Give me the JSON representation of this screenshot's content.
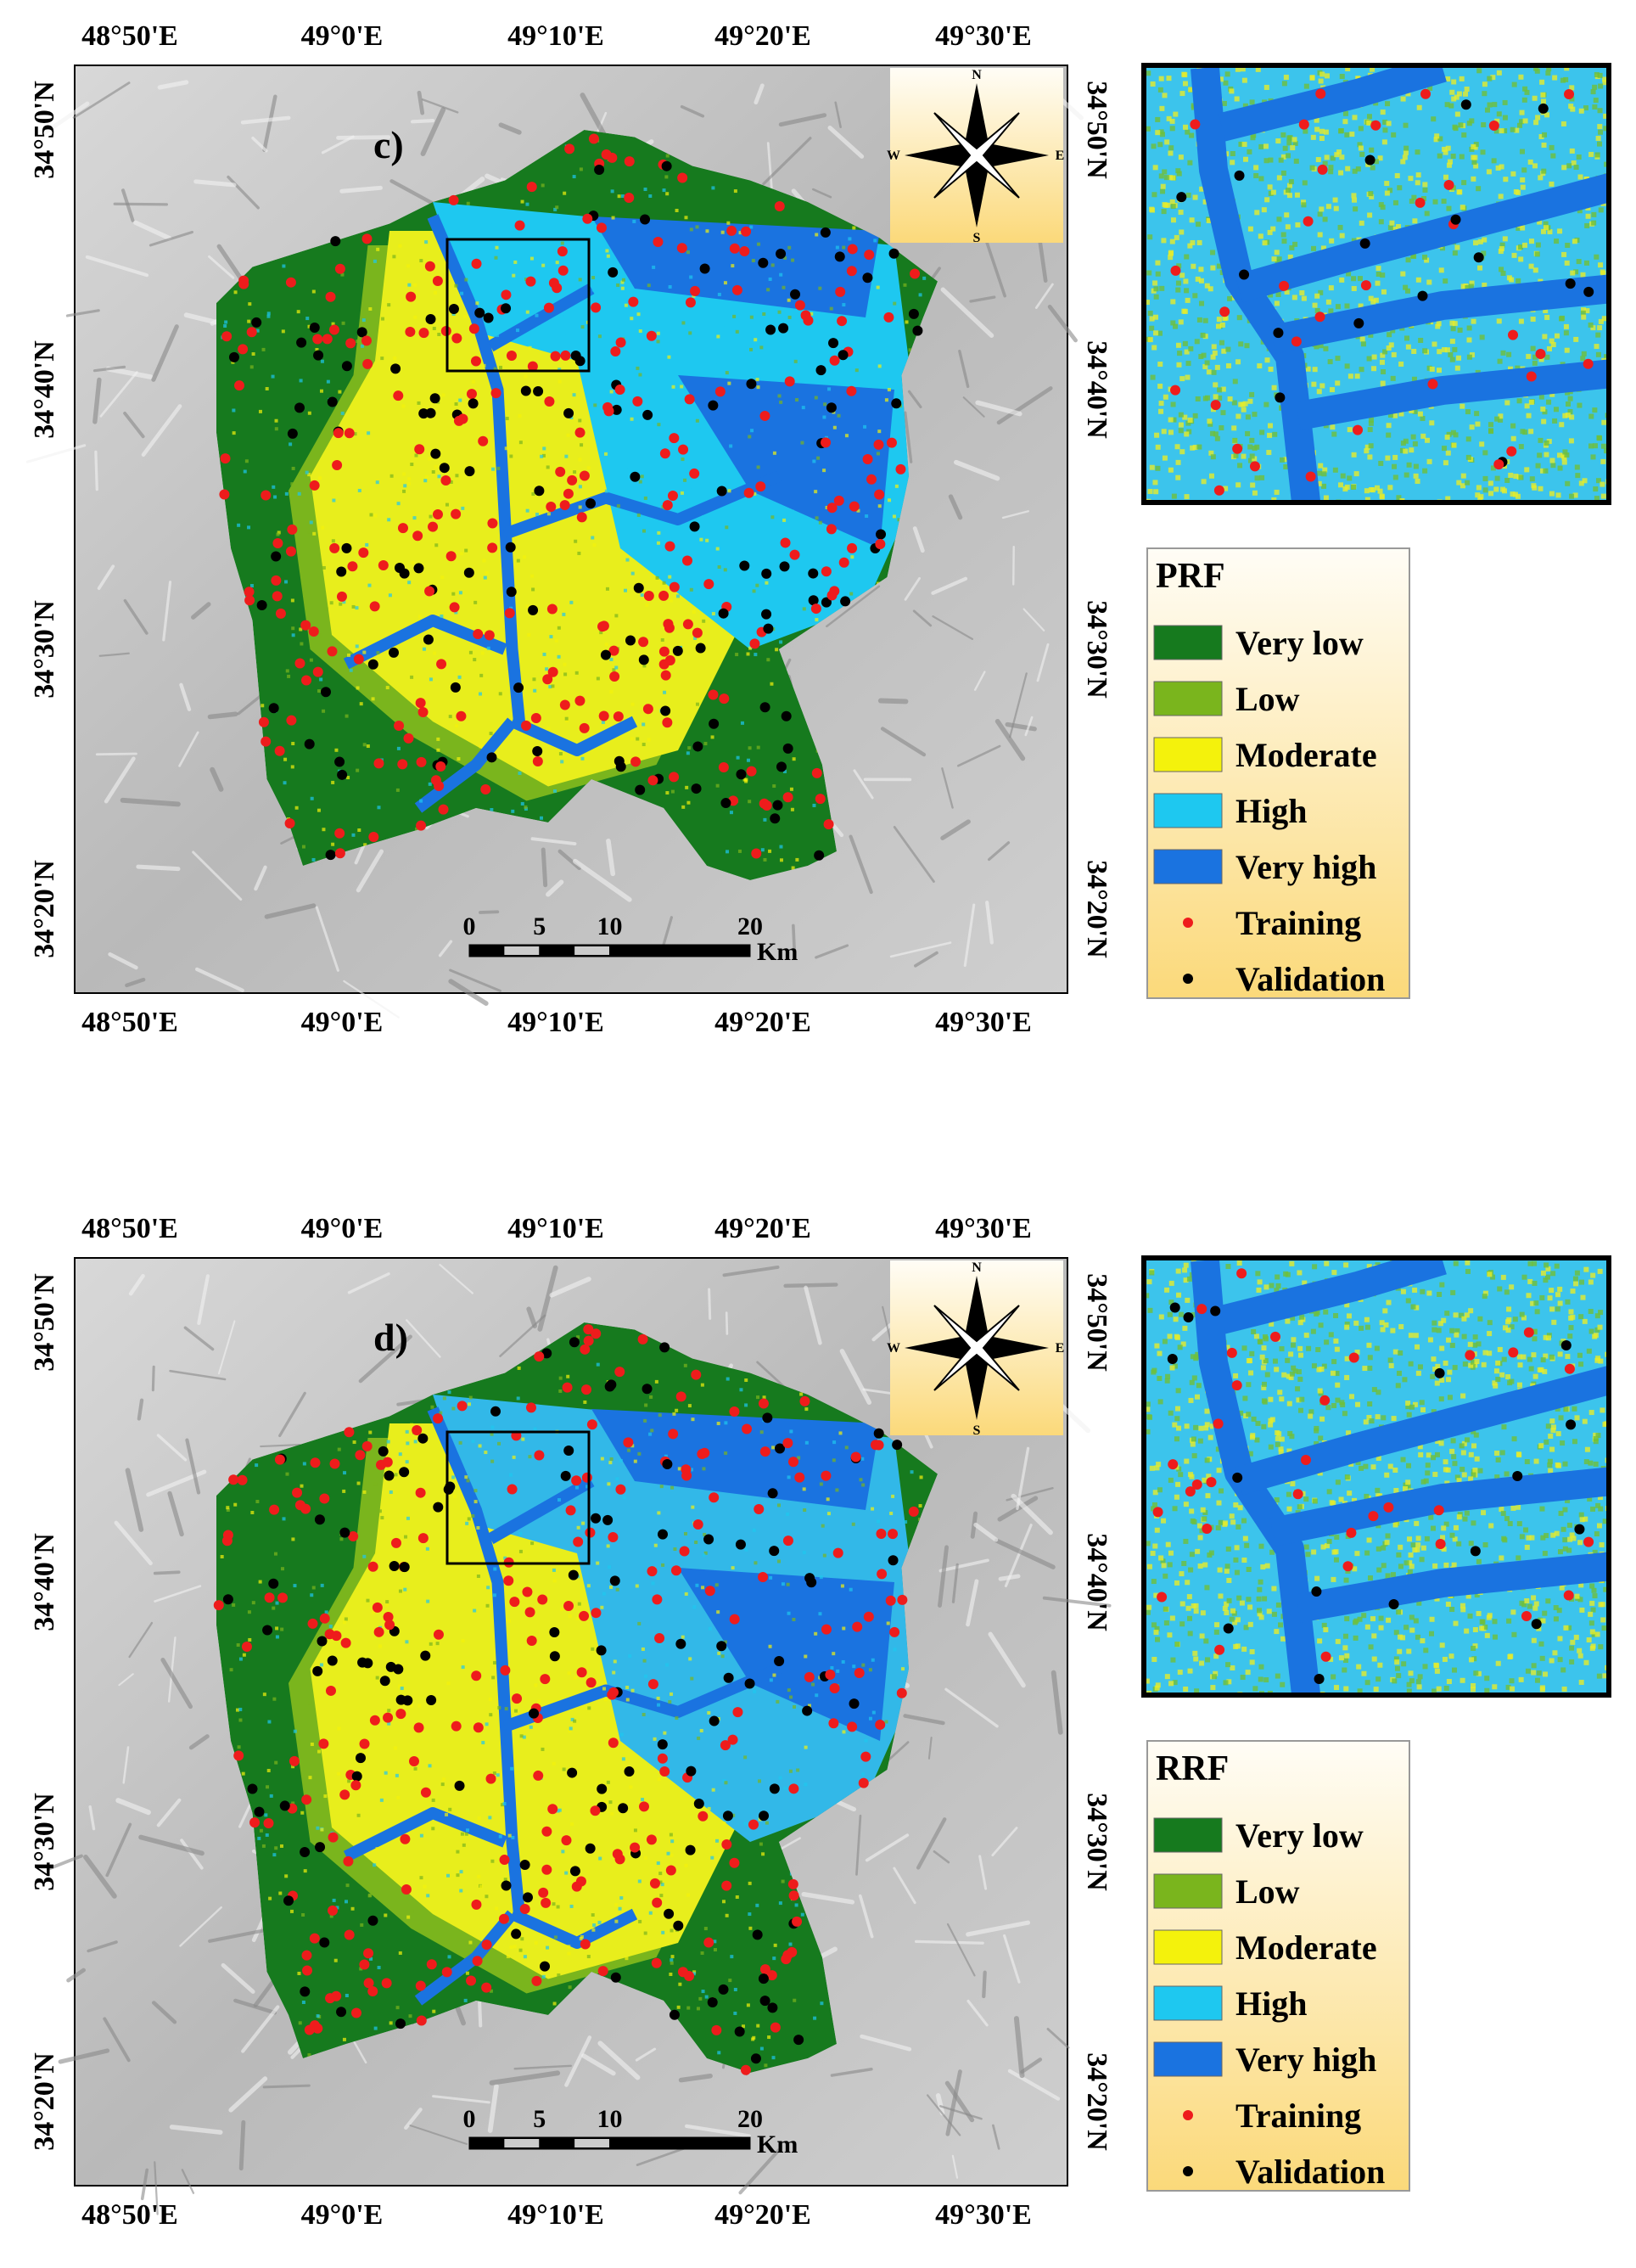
{
  "panels": [
    {
      "label": "c)",
      "legend": {
        "title": "PRF",
        "items": [
          {
            "label": "Very low",
            "color": "#167a1e",
            "symbol": "swatch"
          },
          {
            "label": "Low",
            "color": "#7ab51d",
            "symbol": "swatch"
          },
          {
            "label": "Moderate",
            "color": "#f4f20c",
            "symbol": "swatch"
          },
          {
            "label": "High",
            "color": "#1ec8f0",
            "symbol": "swatch"
          },
          {
            "label": "Very high",
            "color": "#1a73e0",
            "symbol": "swatch"
          },
          {
            "label": "Training",
            "color": "#ee1c1c",
            "symbol": "point"
          },
          {
            "label": "Validation",
            "color": "#000000",
            "symbol": "point"
          }
        ]
      }
    },
    {
      "label": "d)",
      "legend": {
        "title": "RRF",
        "items": [
          {
            "label": "Very low",
            "color": "#167a1e",
            "symbol": "swatch"
          },
          {
            "label": "Low",
            "color": "#7ab51d",
            "symbol": "swatch"
          },
          {
            "label": "Moderate",
            "color": "#f4f20c",
            "symbol": "swatch"
          },
          {
            "label": "High",
            "color": "#1ec8f0",
            "symbol": "swatch"
          },
          {
            "label": "Very high",
            "color": "#1a73e0",
            "symbol": "swatch"
          },
          {
            "label": "Training",
            "color": "#ee1c1c",
            "symbol": "point"
          },
          {
            "label": "Validation",
            "color": "#000000",
            "symbol": "point"
          }
        ]
      }
    }
  ],
  "longitude_labels": [
    "48°50'E",
    "49°0'E",
    "49°10'E",
    "49°20'E",
    "49°30'E"
  ],
  "latitude_labels": [
    "34°50'N",
    "34°40'N",
    "34°30'N",
    "34°20'N"
  ],
  "scale_bar": {
    "ticks": [
      0,
      5,
      10,
      20
    ],
    "unit": "Km"
  },
  "compass": {
    "north": "N",
    "south": "S",
    "east": "E",
    "west": "W"
  }
}
